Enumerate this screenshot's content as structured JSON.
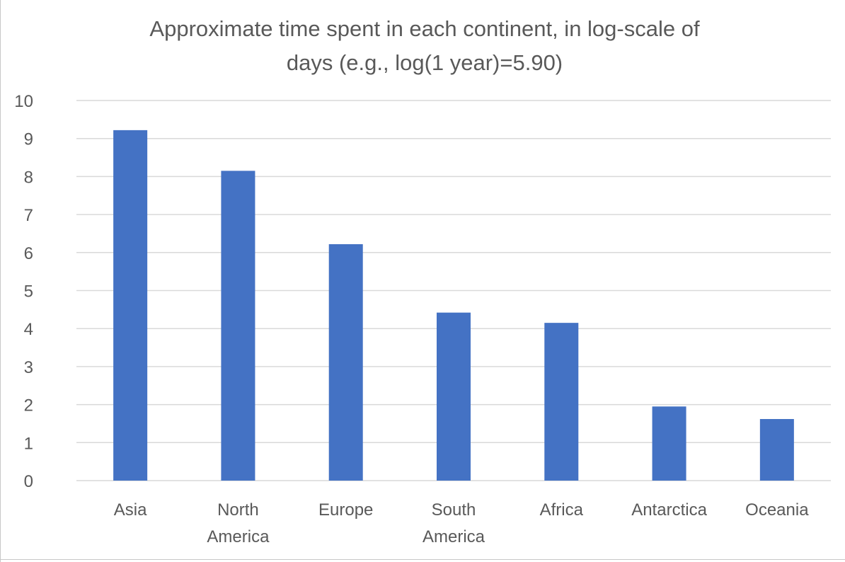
{
  "chart_data": {
    "type": "bar",
    "title_lines": [
      "Approximate time spent in each continent, in log-scale of",
      "days (e.g., log(1 year)=5.90)"
    ],
    "categories": [
      [
        "Asia"
      ],
      [
        "North",
        "America"
      ],
      [
        "Europe"
      ],
      [
        "South",
        "America"
      ],
      [
        "Africa"
      ],
      [
        "Antarctica"
      ],
      [
        "Oceania"
      ]
    ],
    "values": [
      9.22,
      8.15,
      6.22,
      4.42,
      4.15,
      1.95,
      1.62
    ],
    "ylim": [
      0,
      10
    ],
    "yticks": [
      "0",
      "1",
      "2",
      "3",
      "4",
      "5",
      "6",
      "7",
      "8",
      "9",
      "10"
    ],
    "grid": true,
    "bar_color": "#4472C4",
    "grid_color": "#D9D9D9",
    "text_color": "#595959"
  }
}
